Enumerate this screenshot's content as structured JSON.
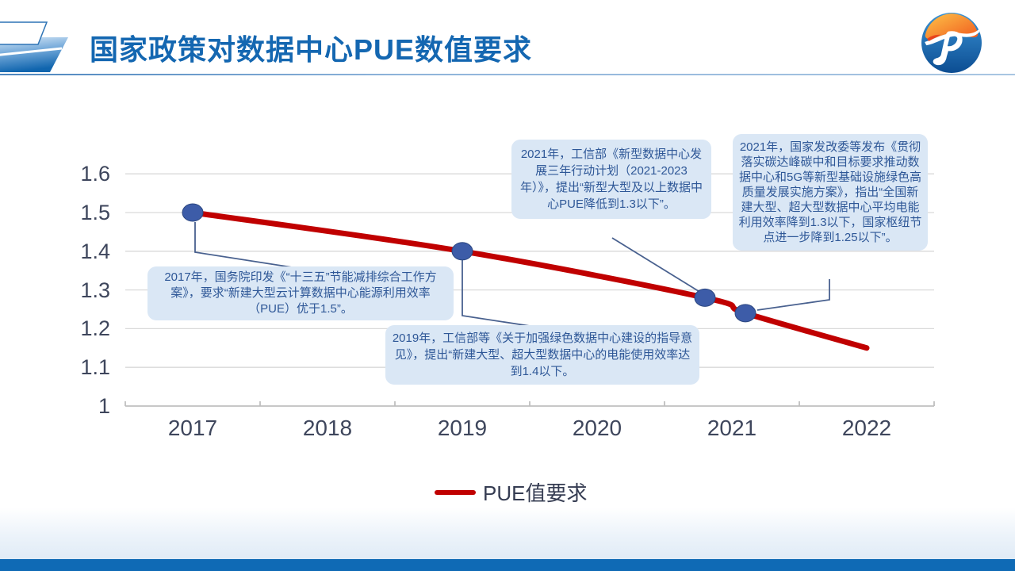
{
  "slide": {
    "title": "国家政策对数据中心PUE数值要求",
    "logo_name": "jp-globe-logo"
  },
  "colors": {
    "title_blue": "#1467B1",
    "line_red": "#C00000",
    "marker_blue": "#3D5CA8",
    "marker_edge": "#2C4780",
    "callout_bg": "#DAE7F5",
    "callout_text": "#2E5797",
    "grid": "#D9D9D9",
    "axis": "#BFBFBF",
    "connector": "#49618F",
    "tick_text": "#3E465C",
    "bottom_bar": "#0F6AB5"
  },
  "chart_data": {
    "type": "line",
    "title": "",
    "xlabel": "",
    "ylabel": "",
    "x_categories": [
      "2017",
      "2018",
      "2019",
      "2020",
      "2021",
      "2022"
    ],
    "yticks": [
      {
        "v": 1.0,
        "label": "1"
      },
      {
        "v": 1.1,
        "label": "1.1"
      },
      {
        "v": 1.2,
        "label": "1.2"
      },
      {
        "v": 1.3,
        "label": "1.3"
      },
      {
        "v": 1.4,
        "label": "1.4"
      },
      {
        "v": 1.5,
        "label": "1.5"
      },
      {
        "v": 1.6,
        "label": "1.6"
      }
    ],
    "ylim": [
      1,
      1.6
    ],
    "grid": "horizontal",
    "legend": {
      "position": "bottom",
      "entries": [
        {
          "label": "PUE值要求",
          "color": "#C00000"
        }
      ]
    },
    "series": [
      {
        "name": "PUE值要求",
        "color": "#C00000",
        "points": [
          {
            "x": 2017,
            "y": 1.5,
            "marker": true
          },
          {
            "x": 2019,
            "y": 1.4,
            "marker": true
          },
          {
            "x": 2020.8,
            "y": 1.28,
            "marker": true
          },
          {
            "x": 2021.1,
            "y": 1.24,
            "marker": true
          },
          {
            "x": 2022,
            "y": 1.15,
            "marker": false
          }
        ]
      }
    ],
    "annotations": [
      {
        "year": 2017,
        "anchor_value": 1.5,
        "text": "2017年，国务院印发《“十三五”节能减排综合工作方案》，要求“新建大型云计算数据中心能源利用效率（PUE）优于1.5”。"
      },
      {
        "year": 2019,
        "anchor_value": 1.4,
        "text": "2019年，工信部等《关于加强绿色数据中心建设的指导意见》，提出“新建大型、超大型数据中心的电能使用效率达到1.4以下。"
      },
      {
        "year": 2021,
        "anchor_value": 1.28,
        "text": "2021年，工信部《新型数据中心发展三年行动计划（2021-2023年）》，提出“新型大型及以上数据中心PUE降低到1.3以下”。"
      },
      {
        "year": 2021,
        "anchor_value": 1.24,
        "text": "2021年，国家发改委等发布《贯彻落实碳达峰碳中和目标要求推动数据中心和5G等新型基础设施绿色高质量发展实施方案》，指出“全国新建大型、超大型数据中心平均电能利用效率降到1.3以下，国家枢纽节点进一步降到1.25以下”。"
      }
    ]
  }
}
